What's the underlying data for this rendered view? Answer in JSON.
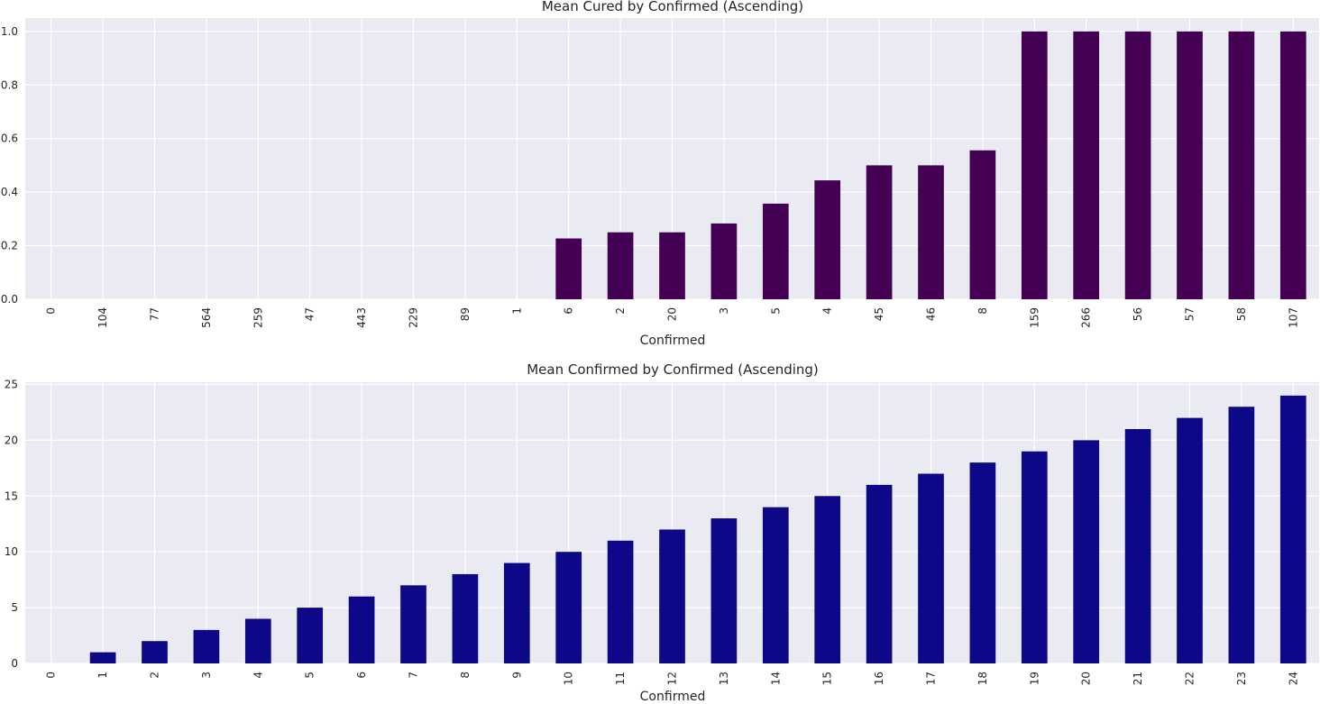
{
  "chart_data": [
    {
      "type": "bar",
      "title": "Mean Cured by Confirmed (Ascending)",
      "xlabel": "Confirmed",
      "ylabel": "",
      "categories": [
        "0",
        "104",
        "77",
        "564",
        "259",
        "47",
        "443",
        "229",
        "89",
        "1",
        "6",
        "2",
        "20",
        "3",
        "5",
        "4",
        "45",
        "46",
        "8",
        "159",
        "266",
        "56",
        "57",
        "58",
        "107"
      ],
      "values": [
        0,
        0,
        0,
        0,
        0,
        0,
        0,
        0,
        0,
        0,
        0.227,
        0.25,
        0.25,
        0.283,
        0.357,
        0.444,
        0.5,
        0.5,
        0.556,
        1,
        1,
        1,
        1,
        1,
        1
      ],
      "ylim": [
        0,
        1.05
      ],
      "yticks": [
        "0.0",
        "0.2",
        "0.4",
        "0.6",
        "0.8",
        "1.0"
      ],
      "color": "#440154",
      "grid": true
    },
    {
      "type": "bar",
      "title": "Mean Confirmed by Confirmed (Ascending)",
      "xlabel": "Confirmed",
      "ylabel": "",
      "categories": [
        "0",
        "1",
        "2",
        "3",
        "4",
        "5",
        "6",
        "7",
        "8",
        "9",
        "10",
        "11",
        "12",
        "13",
        "14",
        "15",
        "16",
        "17",
        "18",
        "19",
        "20",
        "21",
        "22",
        "23",
        "24"
      ],
      "values": [
        0,
        1,
        2,
        3,
        4,
        5,
        6,
        7,
        8,
        9,
        10,
        11,
        12,
        13,
        14,
        15,
        16,
        17,
        18,
        19,
        20,
        21,
        22,
        23,
        24
      ],
      "ylim": [
        0,
        25.2
      ],
      "yticks": [
        "0",
        "5",
        "10",
        "15",
        "20",
        "25"
      ],
      "color": "#0d0887",
      "grid": true
    }
  ]
}
